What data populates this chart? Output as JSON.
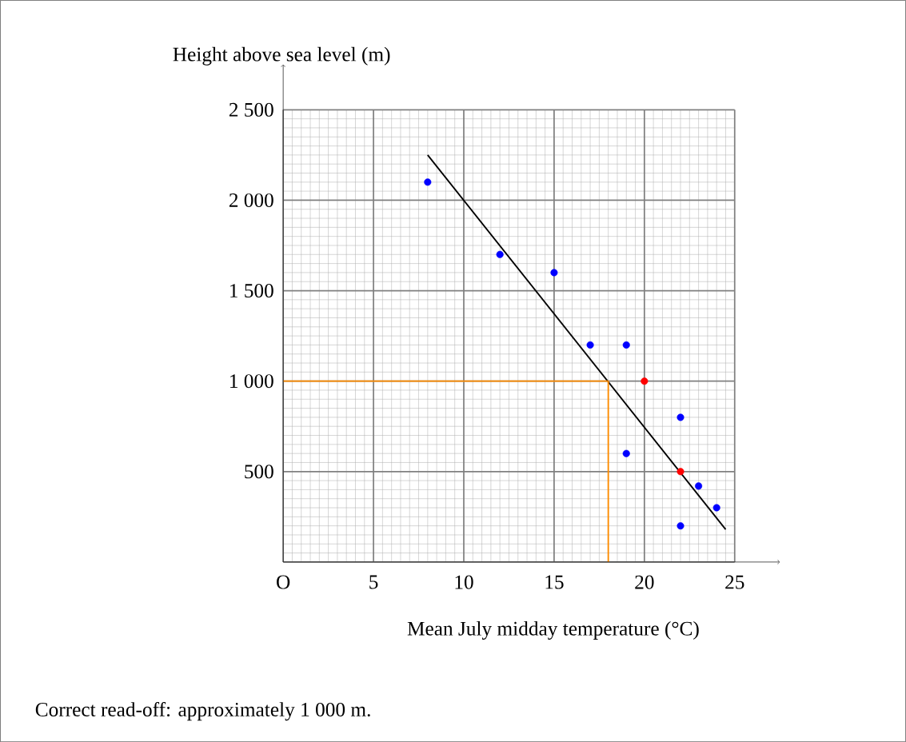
{
  "chart_data": {
    "type": "scatter",
    "xlabel": "Mean July midday temperature (°C)",
    "ylabel": "Height above sea level (m)",
    "annotations": [
      "Correct read-off: approximately 1 000 m."
    ],
    "xlim": [
      0,
      27.5
    ],
    "ylim": [
      0,
      2750
    ],
    "xticks": [
      {
        "value": 0,
        "label": "O"
      },
      5,
      10,
      15,
      20,
      25
    ],
    "yticks": [
      {
        "value": 0,
        "label": null
      },
      500,
      {
        "value": 1000,
        "label": "1 000"
      },
      {
        "value": 1500,
        "label": "1 500"
      },
      {
        "value": 2000,
        "label": "2 000"
      },
      {
        "value": 2500,
        "label": "2 500"
      }
    ],
    "grid": true,
    "series": [
      {
        "color": "#0000ff",
        "marker": "circle",
        "x": [
          8,
          12,
          15,
          17,
          19,
          19,
          22,
          22,
          23,
          24
        ],
        "values": [
          2100,
          1700,
          1600,
          1200,
          1200,
          600,
          800,
          200,
          420,
          300
        ]
      },
      {
        "color": "#ff0000",
        "marker": "circle",
        "x": [
          20,
          22
        ],
        "values": [
          1000,
          500
        ]
      },
      {
        "type": "line",
        "color": "#000000",
        "marker": "none",
        "x": [
          8,
          24.5
        ],
        "values": [
          2250,
          180
        ]
      },
      {
        "type": "line",
        "color": "#ff8c00",
        "marker": "none",
        "x": [
          0,
          18,
          18
        ],
        "values": [
          1000,
          1000,
          0
        ]
      }
    ]
  }
}
